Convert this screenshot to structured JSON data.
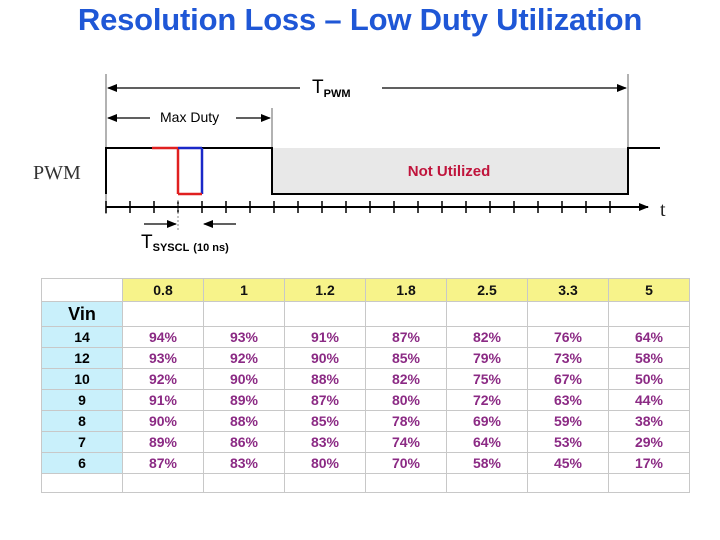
{
  "slide": {
    "title": "Resolution Loss – Low Duty Utilization"
  },
  "diagram": {
    "t_pwm": "T",
    "t_pwm_sub": "PWM",
    "max_duty": "Max Duty",
    "not_utilized": "Not Utilized",
    "pwm_label": "PWM",
    "time_label": "t",
    "t_sysclk": "T",
    "t_sysclk_sub": "SYSCL",
    "t_sysclk_note": "(10 ns)",
    "colors": {
      "axis": "#000000",
      "red_edge": "#e02020",
      "blue_edge": "#1a28c8",
      "not_utilized_fill": "#e8e8e8",
      "pwm_text": "#333333"
    }
  },
  "table": {
    "column_headers": [
      "0.8",
      "1",
      "1.2",
      "1.8",
      "2.5",
      "3.3",
      "5"
    ],
    "row_header_title": "Vin",
    "rows": [
      {
        "vin": "14",
        "values": [
          "94%",
          "93%",
          "91%",
          "87%",
          "82%",
          "76%",
          "64%"
        ]
      },
      {
        "vin": "12",
        "values": [
          "93%",
          "92%",
          "90%",
          "85%",
          "79%",
          "73%",
          "58%"
        ]
      },
      {
        "vin": "10",
        "values": [
          "92%",
          "90%",
          "88%",
          "82%",
          "75%",
          "67%",
          "50%"
        ]
      },
      {
        "vin": "9",
        "values": [
          "91%",
          "89%",
          "87%",
          "80%",
          "72%",
          "63%",
          "44%"
        ]
      },
      {
        "vin": "8",
        "values": [
          "90%",
          "88%",
          "85%",
          "78%",
          "69%",
          "59%",
          "38%"
        ]
      },
      {
        "vin": "7",
        "values": [
          "89%",
          "86%",
          "83%",
          "74%",
          "64%",
          "53%",
          "29%"
        ]
      },
      {
        "vin": "6",
        "values": [
          "87%",
          "83%",
          "80%",
          "70%",
          "58%",
          "45%",
          "17%"
        ]
      }
    ],
    "colors": {
      "header_fill": "#f7f38a",
      "vin_fill": "#c9f0fb",
      "value_text": "#8b2a84",
      "grid": "#c8c8c8"
    }
  }
}
